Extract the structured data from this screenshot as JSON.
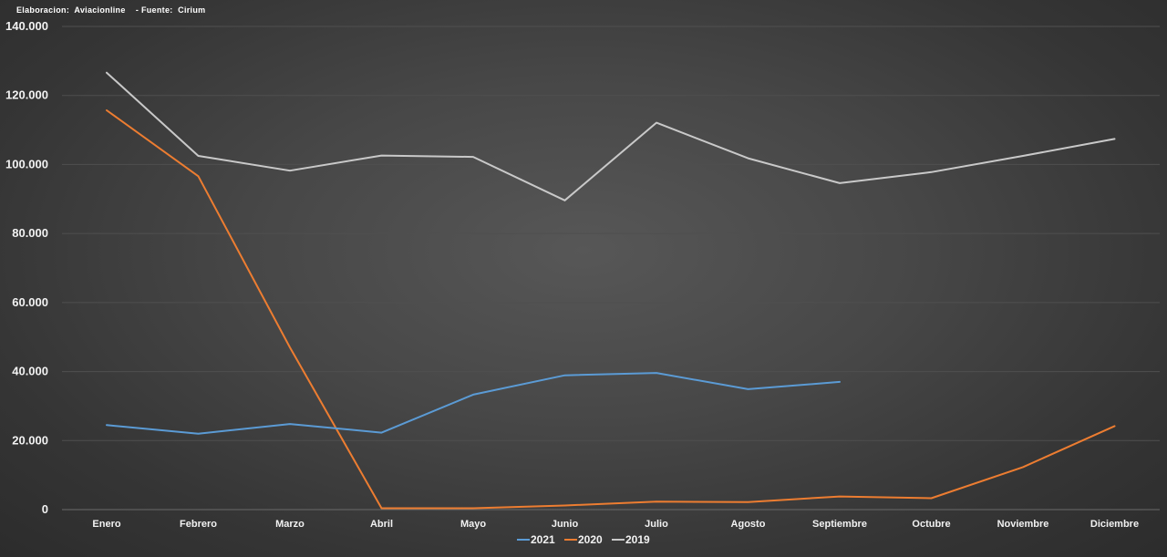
{
  "credits": {
    "text": "Elaboracion:  Aviacionline    - Fuente:  Cirium"
  },
  "chart_data": {
    "type": "line",
    "categories": [
      "Enero",
      "Febrero",
      "Marzo",
      "Abril",
      "Mayo",
      "Junio",
      "Julio",
      "Agosto",
      "Septiembre",
      "Octubre",
      "Noviembre",
      "Diciembre"
    ],
    "y_ticks": [
      "0",
      "20.000",
      "40.000",
      "60.000",
      "80.000",
      "100.000",
      "120.000",
      "140.000"
    ],
    "ylim": [
      0,
      140000
    ],
    "grid": true,
    "legend_position": "bottom",
    "series": [
      {
        "name": "2021",
        "color": "#5b9bd5",
        "values": [
          24500,
          22000,
          24800,
          22300,
          33300,
          38900,
          39600,
          34900,
          37000,
          null,
          null,
          null
        ]
      },
      {
        "name": "2020",
        "color": "#ed7d31",
        "values": [
          115700,
          96600,
          47000,
          400,
          400,
          1200,
          2300,
          2200,
          3800,
          3300,
          12300,
          24200
        ]
      },
      {
        "name": "2019",
        "color": "#c9c9c9",
        "values": [
          126600,
          102500,
          98200,
          102600,
          102200,
          89600,
          112100,
          101800,
          94600,
          97800,
          102500,
          107400
        ]
      }
    ]
  }
}
